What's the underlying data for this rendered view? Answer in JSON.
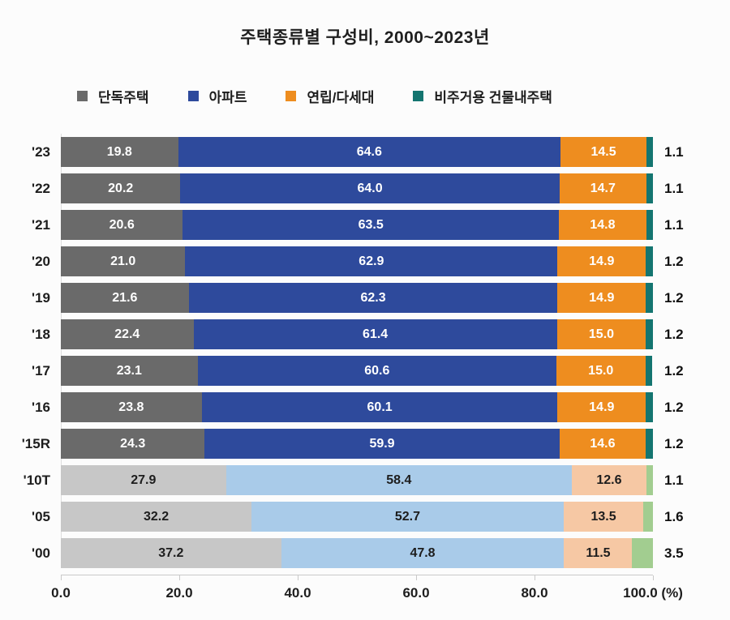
{
  "title": "주택종류별 구성비, 2000~2023년",
  "chart_data": {
    "type": "bar",
    "orientation": "horizontal",
    "stacked": true,
    "title": "주택종류별 구성비, 2000~2023년",
    "legend_position": "top",
    "categories": [
      "'23",
      "'22",
      "'21",
      "'20",
      "'19",
      "'18",
      "'17",
      "'16",
      "'15R",
      "'10T",
      "'05",
      "'00"
    ],
    "series": [
      {
        "name": "단독주택",
        "values": [
          19.8,
          20.2,
          20.6,
          21.0,
          21.6,
          22.4,
          23.1,
          23.8,
          24.3,
          27.9,
          32.2,
          37.2
        ]
      },
      {
        "name": "아파트",
        "values": [
          64.6,
          64.0,
          63.5,
          62.9,
          62.3,
          61.4,
          60.6,
          60.1,
          59.9,
          58.4,
          52.7,
          47.8
        ]
      },
      {
        "name": "연립/다세대",
        "values": [
          14.5,
          14.7,
          14.8,
          14.9,
          14.9,
          15.0,
          15.0,
          14.9,
          14.6,
          12.6,
          13.5,
          11.5
        ]
      },
      {
        "name": "비주거용 건물내주택",
        "values": [
          1.1,
          1.1,
          1.1,
          1.2,
          1.2,
          1.2,
          1.2,
          1.2,
          1.2,
          1.1,
          1.6,
          3.5
        ]
      }
    ],
    "xlim": [
      0,
      100
    ],
    "x_ticks": [
      "0.0",
      "20.0",
      "40.0",
      "60.0",
      "80.0",
      "100.0"
    ],
    "x_tick_values": [
      0,
      20,
      40,
      60,
      80,
      100
    ],
    "x_unit": "(%)",
    "value_label_decimals": 1,
    "last_series_label_outside": true,
    "muted_from_index": 9,
    "colors": {
      "normal": [
        "#6a6a6a",
        "#2e4a9c",
        "#ee8d1f",
        "#147570"
      ],
      "muted": [
        "#c7c7c7",
        "#a9cbe9",
        "#f6c8a4",
        "#a2cd90"
      ],
      "value_text_normal": "#ffffff",
      "value_text_muted": "#1d1d1d",
      "outside_text": "#111111",
      "axis_line": "#c9c9c9"
    }
  }
}
